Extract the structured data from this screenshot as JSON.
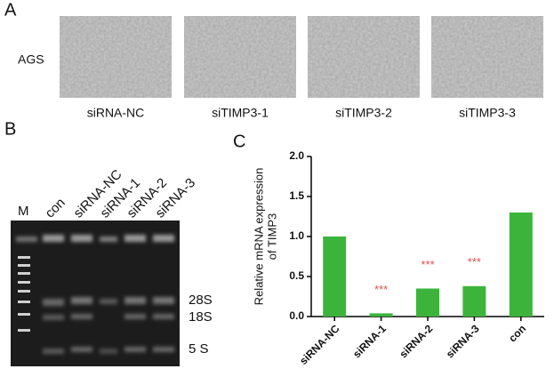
{
  "panel_a": {
    "label": "A",
    "row_label": "AGS",
    "captions": [
      "siRNA-NC",
      "siTIMP3-1",
      "siTIMP3-2",
      "siTIMP3-3"
    ]
  },
  "panel_b": {
    "label": "B",
    "lanes": [
      "M",
      "con",
      "siRNA-NC",
      "siRNA-1",
      "siRNA-2",
      "siRNA-3"
    ],
    "bands": [
      "28S",
      "18S",
      "5 S"
    ]
  },
  "chart_data": {
    "type": "bar",
    "panel_label": "C",
    "ylabel": [
      "Relative mRNA expression",
      "of TIMP3"
    ],
    "categories": [
      "siRNA-NC",
      "siRNA-1",
      "siRNA-2",
      "siRNA-3",
      "con"
    ],
    "values": [
      1.0,
      0.04,
      0.35,
      0.38,
      1.3
    ],
    "significance": [
      null,
      "***",
      "***",
      "***",
      null
    ],
    "color": "#3cb43c",
    "significance_color": "#e05050",
    "ylim": [
      0,
      2
    ],
    "yticks": [
      {
        "value": 0,
        "label": "0.0"
      },
      {
        "value": 0.5,
        "label": "0.5"
      },
      {
        "value": 1,
        "label": "1.0"
      },
      {
        "value": 1.5,
        "label": "1.5"
      },
      {
        "value": 2,
        "label": "2.0"
      }
    ]
  }
}
